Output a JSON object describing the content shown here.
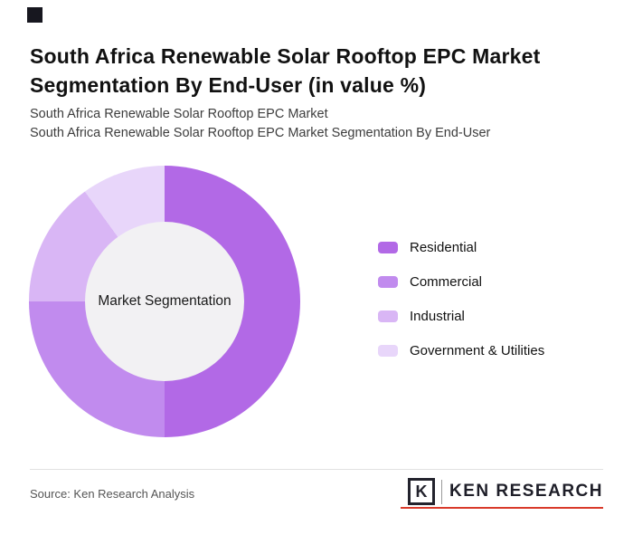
{
  "accent_square_color": "#17171f",
  "header": {
    "title": "South Africa Renewable Solar Rooftop EPC Market Segmentation By End-User (in value %)",
    "subtitle1": "South Africa Renewable Solar Rooftop EPC Market",
    "subtitle2": "South Africa Renewable Solar Rooftop EPC Market Segmentation By End-User"
  },
  "chart_data": {
    "type": "pie",
    "donut": true,
    "title": "South Africa Renewable Solar Rooftop EPC Market Segmentation By End-User (in value %)",
    "center_label": "Market Segmentation",
    "categories": [
      "Residential",
      "Commercial",
      "Industrial",
      "Government & Utilities"
    ],
    "values": [
      50,
      25,
      15,
      10
    ],
    "colors": [
      "#b269e6",
      "#c18bee",
      "#d9b6f5",
      "#e8d6fa"
    ],
    "units": "value %",
    "start_angle_deg": 0,
    "direction": "clockwise",
    "legend_position": "right",
    "hole_color": "#f2f1f3"
  },
  "legend": {
    "items": [
      {
        "label": "Residential",
        "color": "#b269e6"
      },
      {
        "label": "Commercial",
        "color": "#c18bee"
      },
      {
        "label": "Industrial",
        "color": "#d9b6f5"
      },
      {
        "label": "Government & Utilities",
        "color": "#e8d6fa"
      }
    ]
  },
  "footer": {
    "source": "Source: Ken Research Analysis",
    "brand": {
      "letter": "K",
      "name": "KEN RESEARCH",
      "accent_color": "#d93a2b"
    }
  }
}
